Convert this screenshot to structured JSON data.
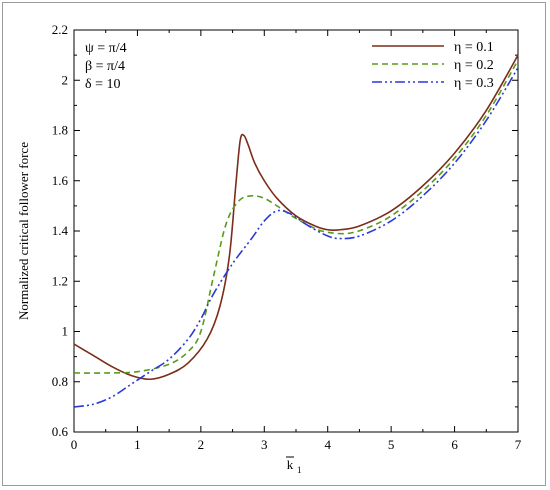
{
  "chart_data": {
    "type": "line",
    "xlabel": "k",
    "xlabel_subscript": "1",
    "ylabel": "Normalized critical follower force",
    "xlim": [
      0,
      7
    ],
    "ylim": [
      0.6,
      2.2
    ],
    "x_ticks": [
      0,
      1,
      2,
      3,
      4,
      5,
      6,
      7
    ],
    "y_ticks": [
      0.6,
      0.8,
      1,
      1.2,
      1.4,
      1.6,
      1.8,
      2,
      2.2
    ],
    "x_tick_labels": [
      "0",
      "1",
      "2",
      "3",
      "4",
      "5",
      "6",
      "7"
    ],
    "y_tick_labels": [
      "0.6",
      "0.8",
      "1",
      "1.2",
      "1.4",
      "1.6",
      "1.8",
      "2",
      "2.2"
    ],
    "grid": false,
    "legend_position": "top-right",
    "parameters": [
      "ψ = π/4",
      "β = π/4",
      "δ = 10"
    ],
    "series": [
      {
        "name": "η = 0.1",
        "color": "#7b2d1a",
        "dash": "solid",
        "x": [
          0,
          0.3,
          0.6,
          0.9,
          1.2,
          1.5,
          1.8,
          2.1,
          2.3,
          2.45,
          2.55,
          2.62,
          2.68,
          2.75,
          2.85,
          3.0,
          3.2,
          3.5,
          3.8,
          4.0,
          4.2,
          4.5,
          5.0,
          5.5,
          6.0,
          6.5,
          7.0
        ],
        "y": [
          0.95,
          0.905,
          0.86,
          0.825,
          0.81,
          0.83,
          0.875,
          0.97,
          1.1,
          1.3,
          1.58,
          1.76,
          1.78,
          1.74,
          1.67,
          1.6,
          1.53,
          1.46,
          1.42,
          1.405,
          1.405,
          1.42,
          1.48,
          1.58,
          1.71,
          1.88,
          2.1
        ]
      },
      {
        "name": "η = 0.2",
        "color": "#5a9a1a",
        "dash": "6,4",
        "x": [
          0,
          0.5,
          1.0,
          1.5,
          1.8,
          2.0,
          2.2,
          2.4,
          2.6,
          2.8,
          3.0,
          3.2,
          3.5,
          3.8,
          4.0,
          4.3,
          4.6,
          5.0,
          5.5,
          6.0,
          6.5,
          7.0
        ],
        "y": [
          0.835,
          0.835,
          0.84,
          0.87,
          0.92,
          1.0,
          1.22,
          1.43,
          1.52,
          1.54,
          1.53,
          1.5,
          1.45,
          1.41,
          1.395,
          1.39,
          1.41,
          1.46,
          1.56,
          1.69,
          1.86,
          2.08
        ]
      },
      {
        "name": "η = 0.3",
        "color": "#2a3ad8",
        "dash": "10,3,2,3,2,3",
        "x": [
          0,
          0.3,
          0.6,
          0.9,
          1.2,
          1.5,
          1.8,
          2.0,
          2.2,
          2.5,
          2.8,
          3.0,
          3.2,
          3.4,
          3.7,
          4.0,
          4.2,
          4.5,
          5.0,
          5.5,
          6.0,
          6.5,
          7.0
        ],
        "y": [
          0.7,
          0.71,
          0.74,
          0.79,
          0.84,
          0.89,
          0.97,
          1.05,
          1.15,
          1.27,
          1.37,
          1.44,
          1.48,
          1.47,
          1.42,
          1.38,
          1.37,
          1.38,
          1.44,
          1.54,
          1.67,
          1.84,
          2.05
        ]
      }
    ]
  }
}
